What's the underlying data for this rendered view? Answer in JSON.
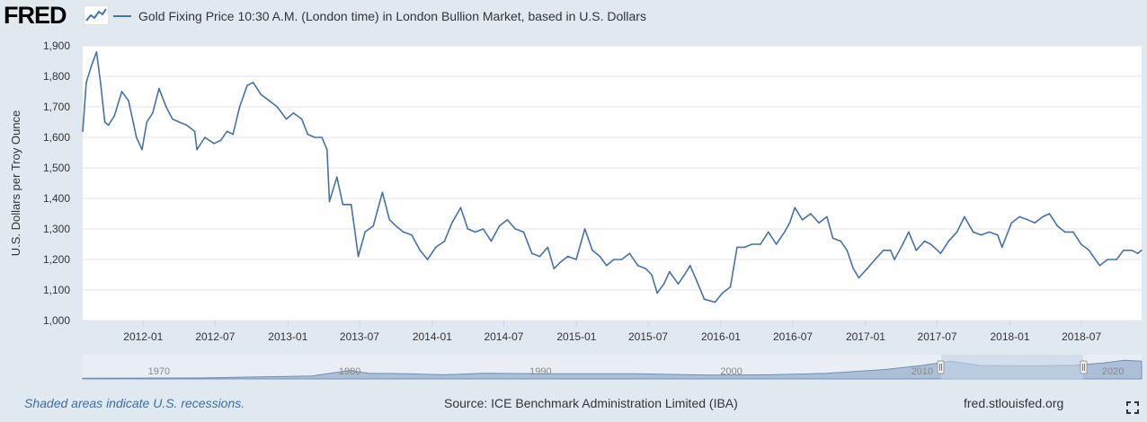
{
  "header": {
    "logo_text": "FRED",
    "logo_icon": "chart-line-icon",
    "legend_label": "Gold Fixing Price 10:30 A.M. (London time) in London Bullion Market, based in U.S. Dollars"
  },
  "footer": {
    "recession_note": "Shaded areas indicate U.S. recessions.",
    "source": "Source: ICE Benchmark Administration Limited (IBA)",
    "site": "fred.stlouisfed.org",
    "fullscreen_icon": "fullscreen-icon"
  },
  "colors": {
    "series": "#4572a7",
    "background": "#e1e9f0",
    "plot_bg": "#ffffff",
    "grid": "#e6e6e6",
    "navigator_fill": "#adbfd6",
    "navigator_selection": "#c4d3e6"
  },
  "chart_data": {
    "type": "line",
    "title": "",
    "ylabel": "U.S. Dollars per Troy Ounce",
    "xlabel": "",
    "ylim": [
      1000,
      1900
    ],
    "xlim": [
      "2011-08-01",
      "2018-11-30"
    ],
    "y_ticks": [
      1000,
      1100,
      1200,
      1300,
      1400,
      1500,
      1600,
      1700,
      1800,
      1900
    ],
    "y_tick_labels": [
      "1,000",
      "1,100",
      "1,200",
      "1,300",
      "1,400",
      "1,500",
      "1,600",
      "1,700",
      "1,800",
      "1,900"
    ],
    "x_ticks": [
      "2012-01",
      "2012-07",
      "2013-01",
      "2013-07",
      "2014-01",
      "2014-07",
      "2015-01",
      "2015-07",
      "2016-01",
      "2016-07",
      "2017-01",
      "2017-07",
      "2018-01",
      "2018-07"
    ],
    "grid": true,
    "legend_position": "top-left",
    "series": [
      {
        "name": "Gold Fixing Price 10:30 A.M. (London time) in London Bullion Market, based in U.S. Dollars",
        "x": [
          "2011-08-01",
          "2011-08-10",
          "2011-08-22",
          "2011-09-05",
          "2011-09-15",
          "2011-09-26",
          "2011-10-05",
          "2011-10-20",
          "2011-11-08",
          "2011-11-25",
          "2011-12-15",
          "2011-12-29",
          "2012-01-10",
          "2012-01-25",
          "2012-02-10",
          "2012-02-28",
          "2012-03-15",
          "2012-04-01",
          "2012-04-20",
          "2012-05-10",
          "2012-05-16",
          "2012-06-05",
          "2012-06-28",
          "2012-07-15",
          "2012-07-31",
          "2012-08-15",
          "2012-09-01",
          "2012-09-20",
          "2012-10-05",
          "2012-10-25",
          "2012-11-15",
          "2012-12-05",
          "2012-12-28",
          "2013-01-15",
          "2013-02-05",
          "2013-02-20",
          "2013-03-10",
          "2013-03-28",
          "2013-04-10",
          "2013-04-16",
          "2013-05-05",
          "2013-05-20",
          "2013-06-10",
          "2013-06-28",
          "2013-07-15",
          "2013-08-05",
          "2013-08-28",
          "2013-09-15",
          "2013-10-01",
          "2013-10-20",
          "2013-11-10",
          "2013-12-01",
          "2013-12-20",
          "2014-01-10",
          "2014-02-01",
          "2014-02-20",
          "2014-03-14",
          "2014-04-01",
          "2014-04-20",
          "2014-05-10",
          "2014-05-30",
          "2014-06-20",
          "2014-07-10",
          "2014-07-30",
          "2014-08-20",
          "2014-09-10",
          "2014-09-30",
          "2014-10-20",
          "2014-11-05",
          "2014-11-20",
          "2014-12-10",
          "2014-12-31",
          "2015-01-22",
          "2015-02-10",
          "2015-03-01",
          "2015-03-18",
          "2015-04-05",
          "2015-04-25",
          "2015-05-15",
          "2015-06-05",
          "2015-06-25",
          "2015-07-10",
          "2015-07-24",
          "2015-08-10",
          "2015-08-24",
          "2015-09-15",
          "2015-10-01",
          "2015-10-15",
          "2015-11-01",
          "2015-11-20",
          "2015-12-17",
          "2016-01-05",
          "2016-01-25",
          "2016-02-11",
          "2016-03-01",
          "2016-03-20",
          "2016-04-10",
          "2016-04-30",
          "2016-05-20",
          "2016-06-10",
          "2016-06-23",
          "2016-07-06",
          "2016-07-25",
          "2016-08-15",
          "2016-09-05",
          "2016-09-25",
          "2016-10-10",
          "2016-10-30",
          "2016-11-15",
          "2016-12-01",
          "2016-12-15",
          "2017-01-05",
          "2017-01-25",
          "2017-02-15",
          "2017-03-05",
          "2017-03-15",
          "2017-04-05",
          "2017-04-20",
          "2017-05-09",
          "2017-05-30",
          "2017-06-15",
          "2017-07-10",
          "2017-07-30",
          "2017-08-20",
          "2017-09-08",
          "2017-09-30",
          "2017-10-20",
          "2017-11-10",
          "2017-12-01",
          "2017-12-12",
          "2018-01-05",
          "2018-01-25",
          "2018-02-15",
          "2018-03-05",
          "2018-03-25",
          "2018-04-11",
          "2018-05-01",
          "2018-05-20",
          "2018-06-10",
          "2018-06-30",
          "2018-07-20",
          "2018-08-16",
          "2018-09-05",
          "2018-09-28",
          "2018-10-15",
          "2018-11-05",
          "2018-11-20",
          "2018-11-30"
        ],
        "values": [
          1620,
          1780,
          1830,
          1880,
          1780,
          1650,
          1640,
          1670,
          1750,
          1720,
          1600,
          1560,
          1650,
          1680,
          1760,
          1700,
          1660,
          1650,
          1640,
          1620,
          1560,
          1600,
          1580,
          1590,
          1620,
          1610,
          1700,
          1770,
          1780,
          1740,
          1720,
          1700,
          1660,
          1680,
          1660,
          1610,
          1600,
          1600,
          1560,
          1390,
          1470,
          1380,
          1380,
          1210,
          1290,
          1310,
          1420,
          1330,
          1310,
          1290,
          1280,
          1230,
          1200,
          1240,
          1260,
          1320,
          1370,
          1300,
          1290,
          1300,
          1260,
          1310,
          1330,
          1300,
          1290,
          1220,
          1210,
          1240,
          1170,
          1190,
          1210,
          1200,
          1300,
          1230,
          1210,
          1180,
          1200,
          1200,
          1220,
          1180,
          1170,
          1150,
          1090,
          1120,
          1160,
          1120,
          1150,
          1180,
          1130,
          1070,
          1060,
          1090,
          1110,
          1240,
          1240,
          1250,
          1250,
          1290,
          1250,
          1290,
          1320,
          1370,
          1330,
          1350,
          1320,
          1340,
          1270,
          1260,
          1230,
          1170,
          1140,
          1170,
          1200,
          1230,
          1230,
          1200,
          1250,
          1290,
          1230,
          1260,
          1250,
          1220,
          1260,
          1290,
          1340,
          1290,
          1280,
          1290,
          1280,
          1240,
          1320,
          1340,
          1330,
          1320,
          1340,
          1350,
          1310,
          1290,
          1290,
          1250,
          1230,
          1180,
          1200,
          1200,
          1230,
          1230,
          1220,
          1230
        ]
      }
    ]
  },
  "navigator": {
    "labels": [
      "1970",
      "1980",
      "1990",
      "2000",
      "2010",
      "2020"
    ]
  }
}
